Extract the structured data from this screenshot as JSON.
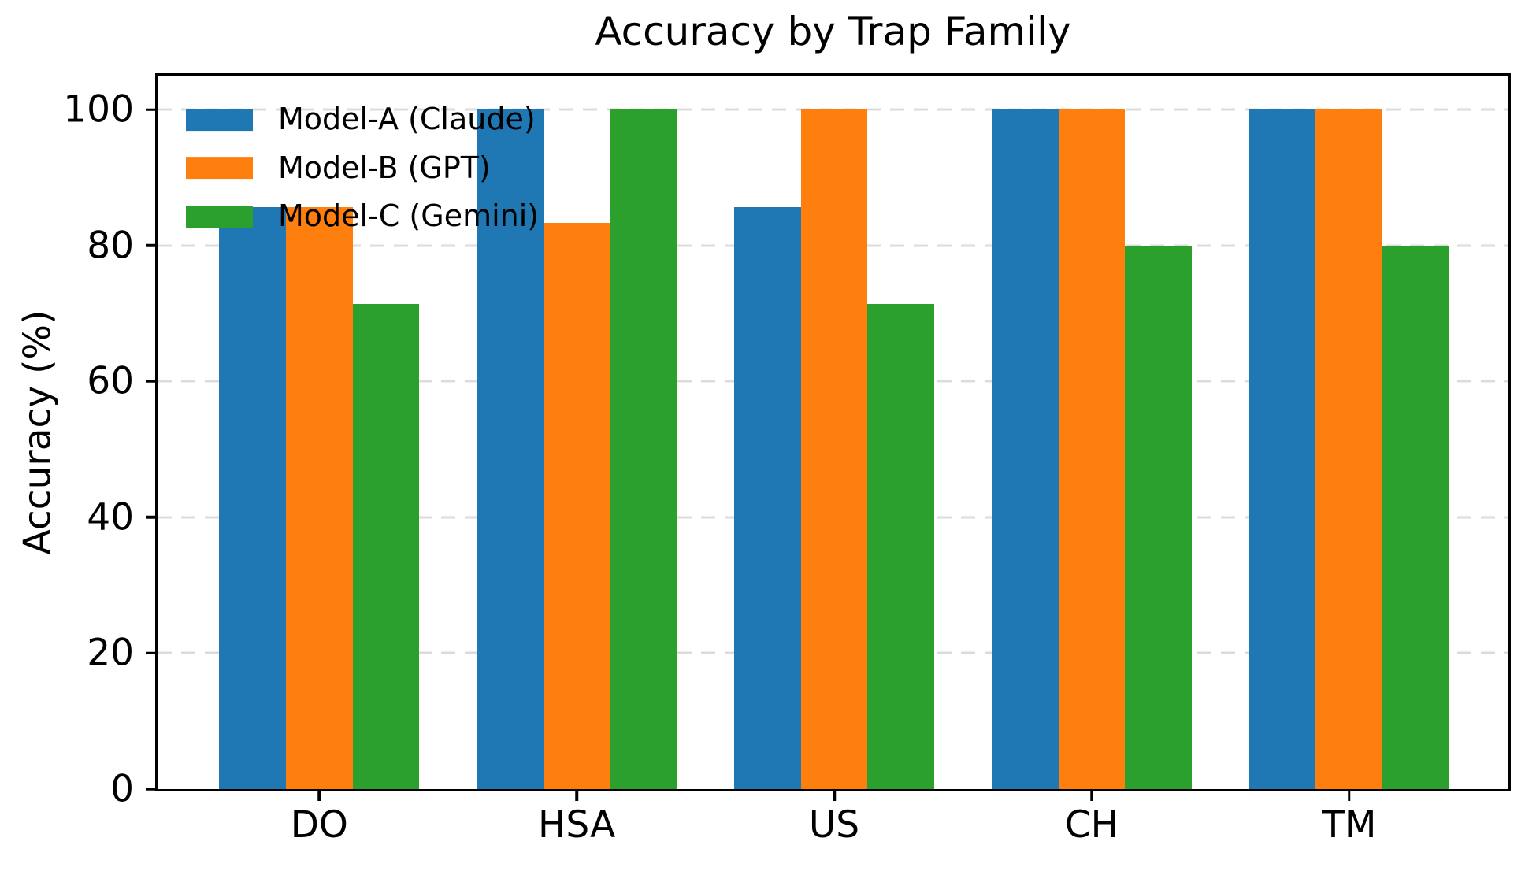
{
  "chart_data": {
    "type": "bar",
    "title": "Accuracy by Trap Family",
    "xlabel": "",
    "ylabel": "Accuracy (%)",
    "categories": [
      "DO",
      "HSA",
      "US",
      "CH",
      "TM"
    ],
    "series": [
      {
        "name": "Model-A (Claude)",
        "color": "#1f77b4",
        "values": [
          85.7,
          100,
          85.7,
          100,
          100
        ]
      },
      {
        "name": "Model-B (GPT)",
        "color": "#ff7f0e",
        "values": [
          85.7,
          83.3,
          100,
          100,
          100
        ]
      },
      {
        "name": "Model-C (Gemini)",
        "color": "#2ca02c",
        "values": [
          71.4,
          100,
          71.4,
          80,
          80
        ]
      }
    ],
    "yticks": [
      0,
      20,
      40,
      60,
      80,
      100
    ],
    "ylim": [
      0,
      105
    ],
    "grid": "horizontal dashed gridlines at y ticks",
    "gridline_color": "#dcdcdc",
    "legend_position": "upper left, no frame",
    "text_color": "#000000",
    "background_color": "#ffffff"
  }
}
